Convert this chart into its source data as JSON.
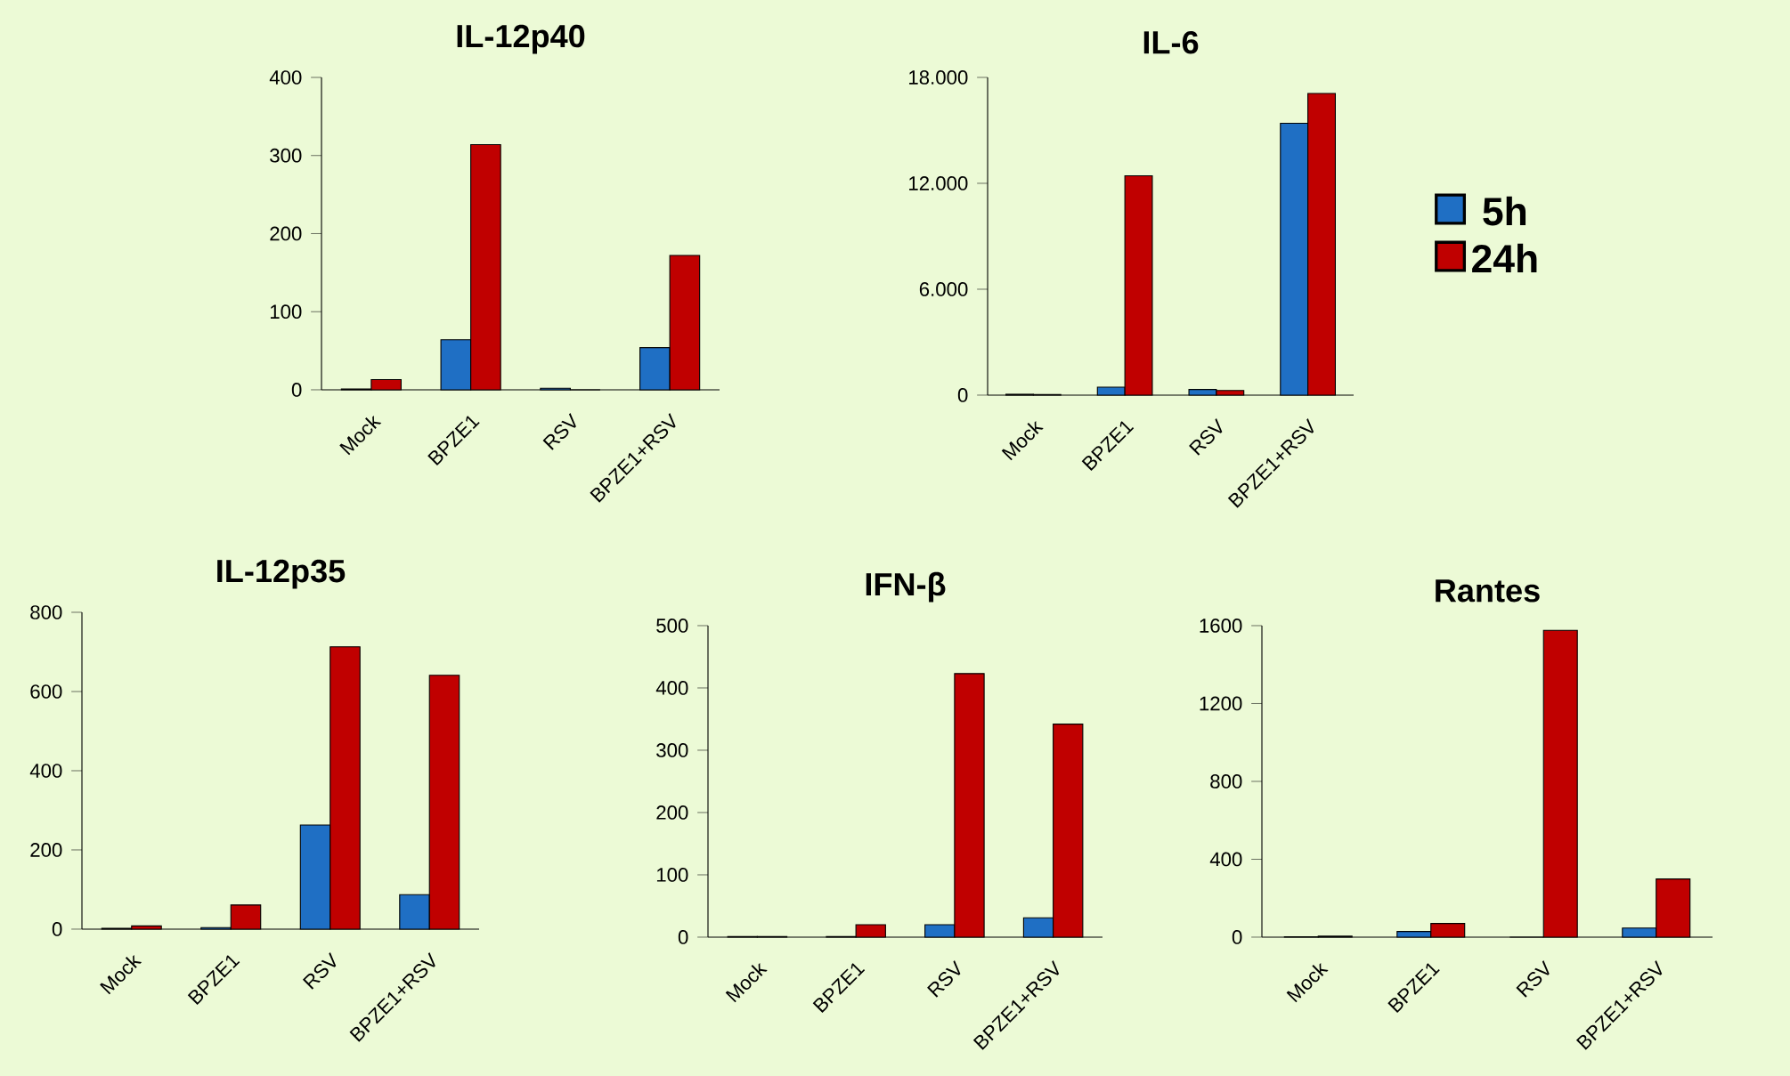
{
  "chart_data": [
    {
      "type": "bar",
      "title": "IL-12p40",
      "categories": [
        "Mock",
        "BPZE1",
        "RSV",
        "BPZE1+RSV"
      ],
      "series": [
        {
          "color": "#1f6fc4",
          "values": [
            1,
            64,
            2,
            54
          ]
        },
        {
          "color": "#c00000",
          "values": [
            13,
            314,
            0,
            172
          ]
        }
      ],
      "ylim": [
        0,
        400
      ],
      "yticks": [
        0,
        100,
        200,
        300,
        400
      ],
      "legend": false
    },
    {
      "type": "bar",
      "title": "IL-6",
      "categories": [
        "Mock",
        "BPZE1",
        "RSV",
        "BPZE1+RSV"
      ],
      "series": [
        {
          "name": "5h",
          "color": "#1f6fc4",
          "values": [
            50,
            450,
            320,
            15400
          ]
        },
        {
          "name": "24h",
          "color": "#c00000",
          "values": [
            30,
            12430,
            260,
            17090
          ]
        }
      ],
      "ylim": [
        0,
        18000
      ],
      "yticks": [
        0,
        {
          "value": 6000,
          "label": "6.000"
        },
        {
          "value": 12000,
          "label": "12.000"
        },
        {
          "value": 18000,
          "label": "18.000"
        }
      ],
      "legend": "right"
    },
    {
      "type": "bar",
      "title": "IL-12p35",
      "categories": [
        "Mock",
        "BPZE1",
        "RSV",
        "BPZE1+RSV"
      ],
      "series": [
        {
          "color": "#1f6fc4",
          "values": [
            2,
            4,
            263,
            87
          ]
        },
        {
          "color": "#c00000",
          "values": [
            8,
            61,
            713,
            641
          ]
        }
      ],
      "ylim": [
        0,
        800
      ],
      "yticks": [
        0,
        200,
        400,
        600,
        800
      ],
      "legend": false
    },
    {
      "type": "bar",
      "title": "IFN-β",
      "categories": [
        "Mock",
        "BPZE1",
        "RSV",
        "BPZE1+RSV"
      ],
      "series": [
        {
          "color": "#1f6fc4",
          "values": [
            1,
            1,
            20,
            31
          ]
        },
        {
          "color": "#c00000",
          "values": [
            1,
            20,
            423,
            342
          ]
        }
      ],
      "ylim": [
        0,
        500
      ],
      "yticks": [
        0,
        100,
        200,
        300,
        400,
        500
      ],
      "legend": false
    },
    {
      "type": "bar",
      "title": "Rantes",
      "categories": [
        "Mock",
        "BPZE1",
        "RSV",
        "BPZE1+RSV"
      ],
      "series": [
        {
          "color": "#1f6fc4",
          "values": [
            2,
            29,
            0,
            47
          ]
        },
        {
          "color": "#c00000",
          "values": [
            5,
            70,
            1576,
            299
          ]
        }
      ],
      "ylim": [
        0,
        1600
      ],
      "yticks": [
        0,
        400,
        800,
        1200,
        1600
      ],
      "legend": false
    }
  ]
}
